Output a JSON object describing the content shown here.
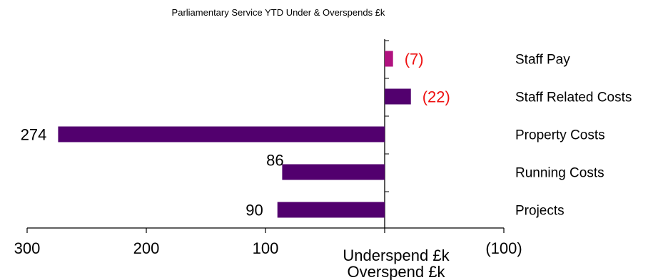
{
  "chart_data": {
    "type": "bar",
    "orientation": "horizontal",
    "title": "Parliamentary Service  YTD Under & Overspends  £k",
    "categories": [
      "Staff Pay",
      "Staff Related Costs",
      "Property Costs",
      "Running Costs",
      "Projects"
    ],
    "values": [
      -7,
      -22,
      274,
      86,
      90
    ],
    "value_labels": [
      "(7)",
      "(22)",
      "274",
      "86",
      "90"
    ],
    "x_axis": {
      "reversed": true,
      "range": [
        300,
        -100
      ],
      "ticks": [
        300,
        200,
        100,
        -100
      ],
      "tick_labels": [
        "300",
        "200",
        "100",
        "(100)"
      ]
    },
    "xlabel": [
      "Underspend £k",
      "Overspend £k"
    ],
    "grid": false,
    "colors": {
      "underspend_bar": "#52006e",
      "overspend_bar": "#b0127f",
      "overspend_text": "#ee1111",
      "staff_related_bar": "#52006e"
    }
  }
}
